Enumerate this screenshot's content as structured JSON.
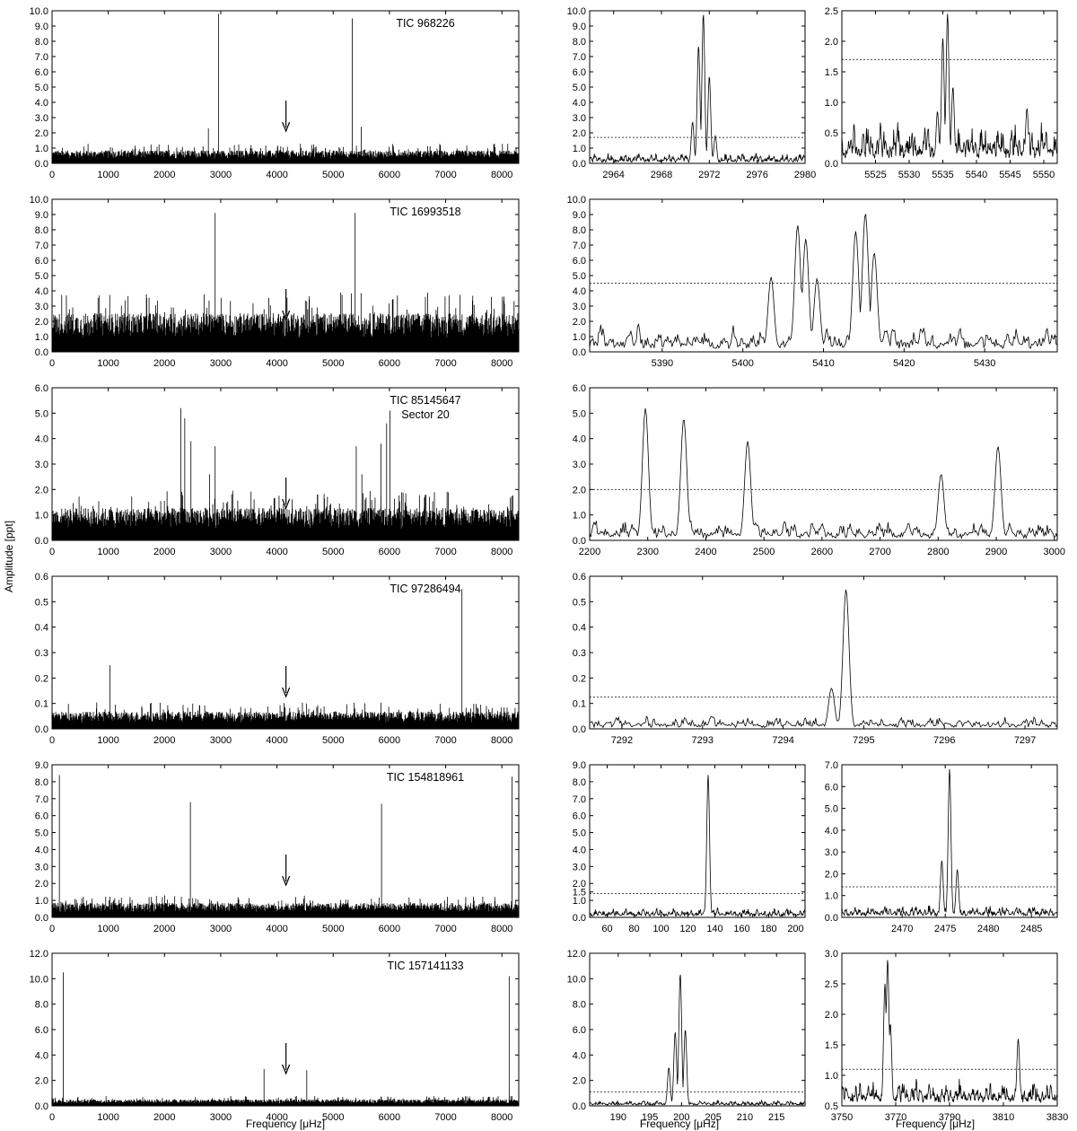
{
  "figure": {
    "ylabel": "Amplitude [ppt]",
    "xlabel": "Frequency [μHz]",
    "rows": 6
  },
  "chart_data": [
    {
      "type": "line",
      "row": 0,
      "annotation": [
        "TIC 968226"
      ],
      "xticks": [
        0,
        1000,
        2000,
        3000,
        4000,
        5000,
        6000,
        7000,
        8000
      ],
      "yticks": [
        "0.0",
        "1.0",
        "2.0",
        "3.0",
        "4.0",
        "5.0",
        "6.0",
        "7.0",
        "8.0",
        "9.0",
        "10.0"
      ],
      "xlim": [
        0,
        8300
      ],
      "ylim": [
        0,
        10
      ],
      "noise": 1.0,
      "arrow": 4160,
      "peaks": [
        [
          2780,
          2.3
        ],
        [
          2960,
          9.8
        ],
        [
          5340,
          9.5
        ],
        [
          5500,
          2.4
        ]
      ]
    },
    {
      "type": "line",
      "row": 0,
      "xticks": [
        2964,
        2968,
        2972,
        2976,
        2980
      ],
      "yticks": [
        "0.0",
        "1.0",
        "2.0",
        "3.0",
        "4.0",
        "5.0",
        "6.0",
        "7.0",
        "8.0",
        "9.0",
        "10.0"
      ],
      "xlim": [
        2962,
        2980
      ],
      "ylim": [
        0,
        10
      ],
      "threshold": 1.7,
      "peaks": [
        [
          2970.6,
          2.7
        ],
        [
          2971.1,
          7.7
        ],
        [
          2971.5,
          9.8
        ],
        [
          2972.0,
          5.7
        ],
        [
          2972.5,
          1.8
        ]
      ]
    },
    {
      "type": "line",
      "row": 0,
      "xticks": [
        5525,
        5530,
        5535,
        5540,
        5545,
        5550
      ],
      "yticks": [
        "0.0",
        "0.5",
        "1.0",
        "1.5",
        "2.0",
        "2.5"
      ],
      "xlim": [
        5520,
        5552
      ],
      "ylim": [
        0,
        2.5
      ],
      "threshold": 1.7,
      "peaks": [
        [
          5534.2,
          0.85
        ],
        [
          5535.0,
          2.05
        ],
        [
          5535.7,
          2.45
        ],
        [
          5536.5,
          1.25
        ],
        [
          5547.5,
          0.9
        ]
      ]
    },
    {
      "type": "line",
      "row": 1,
      "annotation": [
        "TIC 16993518"
      ],
      "xticks": [
        0,
        1000,
        2000,
        3000,
        4000,
        5000,
        6000,
        7000,
        8000
      ],
      "yticks": [
        "0.0",
        "1.0",
        "2.0",
        "3.0",
        "4.0",
        "5.0",
        "6.0",
        "7.0",
        "8.0",
        "9.0",
        "10.0"
      ],
      "xlim": [
        0,
        8300
      ],
      "ylim": [
        0,
        10
      ],
      "noise": 3.0,
      "arrow": 4160,
      "peaks": [
        [
          2900,
          9.1
        ],
        [
          5390,
          9.1
        ]
      ]
    },
    {
      "type": "line",
      "row": 1,
      "xticks": [
        5390,
        5400,
        5410,
        5420,
        5430
      ],
      "yticks": [
        "0.0",
        "1.0",
        "2.0",
        "3.0",
        "4.0",
        "5.0",
        "6.0",
        "7.0",
        "8.0",
        "9.0",
        "10.0"
      ],
      "xlim": [
        5381,
        5439
      ],
      "ylim": [
        0,
        10
      ],
      "threshold": 4.5,
      "peaks": [
        [
          5403.5,
          4.9
        ],
        [
          5406.8,
          8.3
        ],
        [
          5407.8,
          7.4
        ],
        [
          5409.2,
          4.8
        ],
        [
          5414.0,
          7.9
        ],
        [
          5415.2,
          9.1
        ],
        [
          5416.3,
          6.5
        ]
      ]
    },
    {
      "type": "line",
      "row": 2,
      "annotation": [
        "TIC 85145647",
        "Sector 20"
      ],
      "xticks": [
        0,
        1000,
        2000,
        3000,
        4000,
        5000,
        6000,
        7000,
        8000
      ],
      "yticks": [
        "0.0",
        "1.0",
        "2.0",
        "3.0",
        "4.0",
        "5.0",
        "6.0"
      ],
      "xlim": [
        0,
        8300
      ],
      "ylim": [
        0,
        6
      ],
      "noise": 1.5,
      "arrow": 4160,
      "peaks": [
        [
          2290,
          5.2
        ],
        [
          2360,
          4.8
        ],
        [
          2470,
          3.9
        ],
        [
          2800,
          2.6
        ],
        [
          2900,
          3.7
        ],
        [
          5410,
          3.7
        ],
        [
          5510,
          2.6
        ],
        [
          5850,
          3.8
        ],
        [
          5950,
          4.6
        ],
        [
          6010,
          5.1
        ]
      ]
    },
    {
      "type": "line",
      "row": 2,
      "xticks": [
        2200,
        2300,
        2400,
        2500,
        2600,
        2700,
        2800,
        2900,
        3000
      ],
      "yticks": [
        "0.0",
        "1.0",
        "2.0",
        "3.0",
        "4.0",
        "5.0",
        "6.0"
      ],
      "xlim": [
        2200,
        3005
      ],
      "ylim": [
        0,
        6
      ],
      "threshold": 2.0,
      "peaks": [
        [
          2296,
          5.2
        ],
        [
          2362,
          4.8
        ],
        [
          2472,
          3.9
        ],
        [
          2805,
          2.6
        ],
        [
          2903,
          3.7
        ]
      ]
    },
    {
      "type": "line",
      "row": 3,
      "annotation": [
        "TIC 97286494"
      ],
      "xticks": [
        0,
        1000,
        2000,
        3000,
        4000,
        5000,
        6000,
        7000,
        8000
      ],
      "yticks": [
        "0.0",
        "0.1",
        "0.2",
        "0.3",
        "0.4",
        "0.5",
        "0.6"
      ],
      "xlim": [
        0,
        8300
      ],
      "ylim": [
        0,
        0.6
      ],
      "noise": 0.08,
      "arrow": 4160,
      "peaks": [
        [
          1030,
          0.25
        ],
        [
          7290,
          0.55
        ]
      ]
    },
    {
      "type": "line",
      "row": 3,
      "xticks": [
        7292,
        7293,
        7294,
        7295,
        7296,
        7297
      ],
      "yticks": [
        "0.0",
        "0.1",
        "0.2",
        "0.3",
        "0.4",
        "0.5",
        "0.6"
      ],
      "xlim": [
        7291.6,
        7297.4
      ],
      "ylim": [
        0,
        0.6
      ],
      "threshold": 0.125,
      "peaks": [
        [
          7294.6,
          0.16
        ],
        [
          7294.78,
          0.55
        ]
      ]
    },
    {
      "type": "line",
      "row": 4,
      "annotation": [
        "TIC 154818961"
      ],
      "xticks": [
        0,
        1000,
        2000,
        3000,
        4000,
        5000,
        6000,
        7000,
        8000
      ],
      "yticks": [
        "0.0",
        "1.0",
        "2.0",
        "3.0",
        "4.0",
        "5.0",
        "6.0",
        "7.0",
        "8.0",
        "9.0"
      ],
      "xlim": [
        0,
        8300
      ],
      "ylim": [
        0,
        9
      ],
      "noise": 1.0,
      "arrow": 4160,
      "peaks": [
        [
          130,
          8.4
        ],
        [
          2460,
          6.8
        ],
        [
          5860,
          6.7
        ],
        [
          8180,
          8.3
        ]
      ]
    },
    {
      "type": "line",
      "row": 4,
      "xticks": [
        60,
        80,
        100,
        120,
        140,
        160,
        180,
        200
      ],
      "yticks": [
        "0.0",
        "1.0",
        "1.5",
        "2.0",
        "3.0",
        "4.0",
        "5.0",
        "6.0",
        "7.0",
        "8.0",
        "9.0"
      ],
      "xlim": [
        47,
        207
      ],
      "ylim": [
        0,
        9
      ],
      "threshold": 1.4,
      "peaks": [
        [
          135,
          8.4
        ]
      ]
    },
    {
      "type": "line",
      "row": 4,
      "xticks": [
        2470,
        2475,
        2480,
        2485
      ],
      "yticks": [
        "0.0",
        "1.0",
        "2.0",
        "3.0",
        "4.0",
        "5.0",
        "6.0",
        "7.0"
      ],
      "xlim": [
        2463,
        2488
      ],
      "ylim": [
        0,
        7
      ],
      "threshold": 1.4,
      "peaks": [
        [
          2474.6,
          2.6
        ],
        [
          2475.5,
          6.8
        ],
        [
          2476.4,
          2.2
        ]
      ]
    },
    {
      "type": "line",
      "row": 5,
      "annotation": [
        "TIC 157141133"
      ],
      "xticks": [
        0,
        1000,
        2000,
        3000,
        4000,
        5000,
        6000,
        7000,
        8000
      ],
      "yticks": [
        "0.0",
        "2.0",
        "4.0",
        "6.0",
        "8.0",
        "10.0",
        "12.0"
      ],
      "xlim": [
        0,
        8300
      ],
      "ylim": [
        0,
        12
      ],
      "noise": 0.6,
      "arrow": 4160,
      "peaks": [
        [
          200,
          10.5
        ],
        [
          3770,
          2.9
        ],
        [
          4530,
          2.8
        ],
        [
          8130,
          10.2
        ]
      ]
    },
    {
      "type": "line",
      "row": 5,
      "xticks": [
        190,
        195,
        200,
        205,
        210,
        215
      ],
      "yticks": [
        "0.0",
        "2.0",
        "4.0",
        "6.0",
        "8.0",
        "10.0",
        "12.0"
      ],
      "xlim": [
        185.5,
        219.5
      ],
      "ylim": [
        0,
        12
      ],
      "threshold": 1.1,
      "peaks": [
        [
          199.0,
          5.8
        ],
        [
          199.8,
          10.4
        ],
        [
          200.6,
          6.0
        ],
        [
          198.0,
          3.0
        ]
      ]
    },
    {
      "type": "line",
      "row": 5,
      "xticks": [
        3750,
        3770,
        3790,
        3810,
        3830
      ],
      "yticks": [
        "0.5",
        "1.0",
        "1.5",
        "2.0",
        "2.5",
        "3.0"
      ],
      "xlim": [
        3750,
        3830
      ],
      "ylim": [
        0.5,
        3.0
      ],
      "threshold": 1.1,
      "peaks": [
        [
          3766,
          2.5
        ],
        [
          3767,
          2.9
        ],
        [
          3768,
          1.85
        ],
        [
          3815.5,
          1.6
        ]
      ]
    }
  ]
}
